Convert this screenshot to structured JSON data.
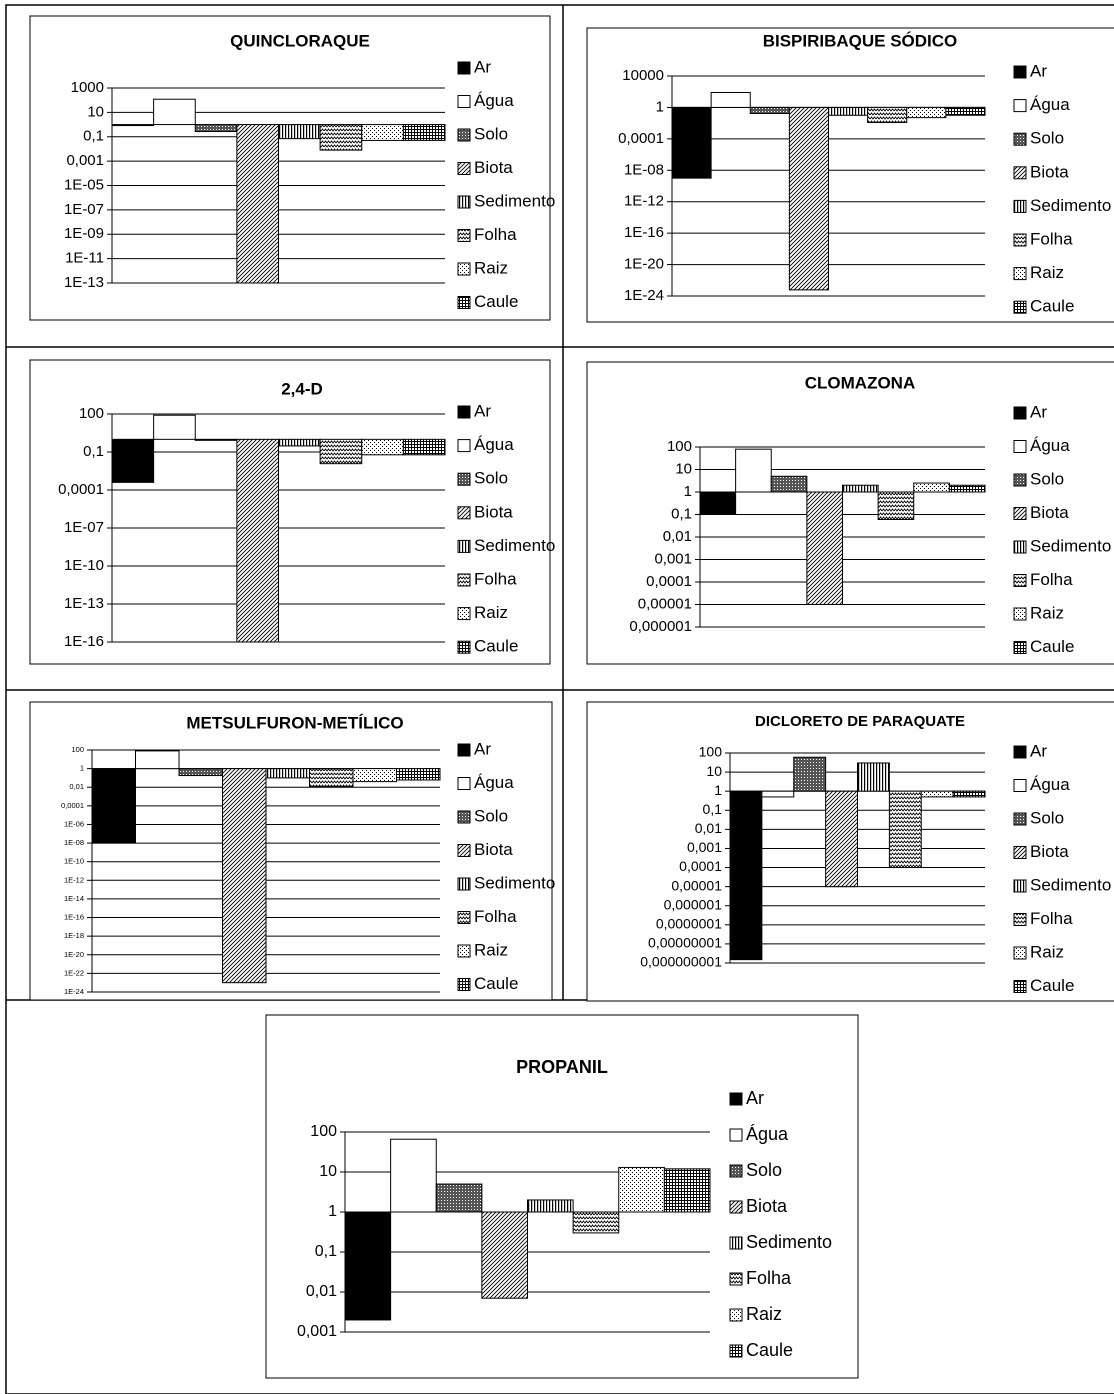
{
  "chart_data": [
    {
      "type": "bar",
      "title": "QUINCLORAQUE",
      "yscale": "log",
      "grid": true,
      "legend": "right",
      "ylim": [
        1e-13,
        1000
      ],
      "yticks": [
        1000,
        10,
        {
          "value": 0.1,
          "label": "0,1"
        },
        {
          "value": 0.001,
          "label": "0,001"
        },
        {
          "value": 1e-05,
          "label": "1E-05"
        },
        {
          "value": 1e-07,
          "label": "1E-07"
        },
        {
          "value": 1e-09,
          "label": "1E-09"
        },
        {
          "value": 1e-11,
          "label": "1E-11"
        },
        {
          "value": 1e-13,
          "label": "1E-13"
        }
      ],
      "series": [
        {
          "name": "Ar",
          "pattern": "solid",
          "values": [
            0.9
          ]
        },
        {
          "name": "Água",
          "pattern": "none",
          "values": [
            120
          ]
        },
        {
          "name": "Solo",
          "pattern": "dense",
          "values": [
            0.27
          ]
        },
        {
          "name": "Biota",
          "pattern": "diagonal",
          "values": [
            1e-13
          ]
        },
        {
          "name": "Sedimento",
          "pattern": "vertical",
          "values": [
            0.07
          ]
        },
        {
          "name": "Folha",
          "pattern": "zigzag",
          "values": [
            0.008
          ]
        },
        {
          "name": "Raiz",
          "pattern": "dots",
          "values": [
            0.05
          ]
        },
        {
          "name": "Caule",
          "pattern": "grid",
          "values": [
            0.05
          ]
        }
      ]
    },
    {
      "type": "bar",
      "title": "BISPIRIBAQUE SÓDICO",
      "yscale": "log",
      "grid": true,
      "legend": "right",
      "ylim": [
        1e-24,
        10000
      ],
      "yticks": [
        10000,
        1,
        {
          "value": 0.0001,
          "label": "0,0001"
        },
        {
          "value": 1e-08,
          "label": "1E-08"
        },
        {
          "value": 1e-12,
          "label": "1E-12"
        },
        {
          "value": 1e-16,
          "label": "1E-16"
        },
        {
          "value": 1e-20,
          "label": "1E-20"
        },
        {
          "value": 1e-24,
          "label": "1E-24"
        }
      ],
      "series": [
        {
          "name": "Ar",
          "pattern": "solid",
          "values": [
            1e-09
          ]
        },
        {
          "name": "Água",
          "pattern": "none",
          "values": [
            80
          ]
        },
        {
          "name": "Solo",
          "pattern": "dense",
          "values": [
            0.17
          ]
        },
        {
          "name": "Biota",
          "pattern": "diagonal",
          "values": [
            6e-24
          ]
        },
        {
          "name": "Sedimento",
          "pattern": "vertical",
          "values": [
            0.1
          ]
        },
        {
          "name": "Folha",
          "pattern": "zigzag",
          "values": [
            0.012
          ]
        },
        {
          "name": "Raiz",
          "pattern": "dots",
          "values": [
            0.05
          ]
        },
        {
          "name": "Caule",
          "pattern": "grid",
          "values": [
            0.1
          ]
        }
      ]
    },
    {
      "type": "bar",
      "title": "2,4-D",
      "yscale": "log",
      "grid": true,
      "legend": "right",
      "ylim": [
        1e-16,
        100
      ],
      "yticks": [
        100,
        {
          "value": 0.1,
          "label": "0,1"
        },
        {
          "value": 0.0001,
          "label": "0,0001"
        },
        {
          "value": 1e-07,
          "label": "1E-07"
        },
        {
          "value": 1e-10,
          "label": "1E-10"
        },
        {
          "value": 1e-13,
          "label": "1E-13"
        },
        {
          "value": 1e-16,
          "label": "1E-16"
        }
      ],
      "series": [
        {
          "name": "Ar",
          "pattern": "solid",
          "values": [
            0.0004
          ]
        },
        {
          "name": "Água",
          "pattern": "none",
          "values": [
            80
          ]
        },
        {
          "name": "Solo",
          "pattern": "dense",
          "values": [
            0.9
          ]
        },
        {
          "name": "Biota",
          "pattern": "diagonal",
          "values": [
            1e-16
          ]
        },
        {
          "name": "Sedimento",
          "pattern": "vertical",
          "values": [
            0.3
          ]
        },
        {
          "name": "Folha",
          "pattern": "zigzag",
          "values": [
            0.012
          ]
        },
        {
          "name": "Raiz",
          "pattern": "dots",
          "values": [
            0.06
          ]
        },
        {
          "name": "Caule",
          "pattern": "grid",
          "values": [
            0.06
          ]
        }
      ]
    },
    {
      "type": "bar",
      "title": "CLOMAZONA",
      "yscale": "log",
      "grid": true,
      "legend": "right",
      "ylim": [
        1e-06,
        100
      ],
      "yticks": [
        100,
        10,
        1,
        {
          "value": 0.1,
          "label": "0,1"
        },
        {
          "value": 0.01,
          "label": "0,01"
        },
        {
          "value": 0.001,
          "label": "0,001"
        },
        {
          "value": 0.0001,
          "label": "0,0001"
        },
        {
          "value": 1e-05,
          "label": "0,00001"
        },
        {
          "value": 1e-06,
          "label": "0,000001"
        }
      ],
      "series": [
        {
          "name": "Ar",
          "pattern": "solid",
          "values": [
            0.1
          ]
        },
        {
          "name": "Água",
          "pattern": "none",
          "values": [
            80
          ]
        },
        {
          "name": "Solo",
          "pattern": "dense",
          "values": [
            5
          ]
        },
        {
          "name": "Biota",
          "pattern": "diagonal",
          "values": [
            1e-05
          ]
        },
        {
          "name": "Sedimento",
          "pattern": "vertical",
          "values": [
            2
          ]
        },
        {
          "name": "Folha",
          "pattern": "zigzag",
          "values": [
            0.06
          ]
        },
        {
          "name": "Raiz",
          "pattern": "dots",
          "values": [
            2.5
          ]
        },
        {
          "name": "Caule",
          "pattern": "grid",
          "values": [
            2
          ]
        }
      ]
    },
    {
      "type": "bar",
      "title": "METSULFURON-METÍLICO",
      "yscale": "log",
      "grid": true,
      "legend": "right",
      "ylim": [
        1e-24,
        100
      ],
      "yticks": [
        100,
        1,
        {
          "value": 0.01,
          "label": "0,01"
        },
        {
          "value": 0.0001,
          "label": "0,0001"
        },
        {
          "value": 1e-06,
          "label": "1E-06"
        },
        {
          "value": 1e-08,
          "label": "1E-08"
        },
        {
          "value": 1e-10,
          "label": "1E-10"
        },
        {
          "value": 1e-12,
          "label": "1E-12"
        },
        {
          "value": 1e-14,
          "label": "1E-14"
        },
        {
          "value": 1e-16,
          "label": "1E-16"
        },
        {
          "value": 1e-18,
          "label": "1E-18"
        },
        {
          "value": 1e-20,
          "label": "1E-20"
        },
        {
          "value": 1e-22,
          "label": "1E-22"
        },
        {
          "value": 1e-24,
          "label": "1E-24"
        }
      ],
      "series": [
        {
          "name": "Ar",
          "pattern": "solid",
          "values": [
            1e-08
          ]
        },
        {
          "name": "Água",
          "pattern": "none",
          "values": [
            80
          ]
        },
        {
          "name": "Solo",
          "pattern": "dense",
          "values": [
            0.18
          ]
        },
        {
          "name": "Biota",
          "pattern": "diagonal",
          "values": [
            1e-23
          ]
        },
        {
          "name": "Sedimento",
          "pattern": "vertical",
          "values": [
            0.1
          ]
        },
        {
          "name": "Folha",
          "pattern": "zigzag",
          "values": [
            0.012
          ]
        },
        {
          "name": "Raiz",
          "pattern": "dots",
          "values": [
            0.04
          ]
        },
        {
          "name": "Caule",
          "pattern": "grid",
          "values": [
            0.06
          ]
        }
      ]
    },
    {
      "type": "bar",
      "title": "DICLORETO DE PARAQUATE",
      "yscale": "log",
      "grid": true,
      "legend": "right",
      "ylim": [
        1e-09,
        100
      ],
      "yticks": [
        100,
        10,
        1,
        {
          "value": 0.1,
          "label": "0,1"
        },
        {
          "value": 0.01,
          "label": "0,01"
        },
        {
          "value": 0.001,
          "label": "0,001"
        },
        {
          "value": 0.0001,
          "label": "0,0001"
        },
        {
          "value": 1e-05,
          "label": "0,00001"
        },
        {
          "value": 1e-06,
          "label": "0,000001"
        },
        {
          "value": 1e-07,
          "label": "0,0000001"
        },
        {
          "value": 1e-08,
          "label": "0,00000001"
        },
        {
          "value": 1e-09,
          "label": "0,000000001"
        }
      ],
      "series": [
        {
          "name": "Ar",
          "pattern": "solid",
          "values": [
            1.5e-09
          ]
        },
        {
          "name": "Água",
          "pattern": "none",
          "values": [
            0.5
          ]
        },
        {
          "name": "Solo",
          "pattern": "dense",
          "values": [
            60
          ]
        },
        {
          "name": "Biota",
          "pattern": "diagonal",
          "values": [
            1e-05
          ]
        },
        {
          "name": "Sedimento",
          "pattern": "vertical",
          "values": [
            30
          ]
        },
        {
          "name": "Folha",
          "pattern": "zigzag",
          "values": [
            0.0001
          ]
        },
        {
          "name": "Raiz",
          "pattern": "dots",
          "values": [
            0.5
          ]
        },
        {
          "name": "Caule",
          "pattern": "grid",
          "values": [
            0.5
          ]
        }
      ]
    },
    {
      "type": "bar",
      "title": "PROPANIL",
      "yscale": "log",
      "grid": true,
      "legend": "right",
      "ylim": [
        0.001,
        100
      ],
      "yticks": [
        100,
        10,
        1,
        {
          "value": 0.1,
          "label": "0,1"
        },
        {
          "value": 0.01,
          "label": "0,01"
        },
        {
          "value": 0.001,
          "label": "0,001"
        }
      ],
      "series": [
        {
          "name": "Ar",
          "pattern": "solid",
          "values": [
            0.002
          ]
        },
        {
          "name": "Água",
          "pattern": "none",
          "values": [
            66
          ]
        },
        {
          "name": "Solo",
          "pattern": "dense",
          "values": [
            5
          ]
        },
        {
          "name": "Biota",
          "pattern": "diagonal",
          "values": [
            0.007
          ]
        },
        {
          "name": "Sedimento",
          "pattern": "vertical",
          "values": [
            2
          ]
        },
        {
          "name": "Folha",
          "pattern": "zigzag",
          "values": [
            0.3
          ]
        },
        {
          "name": "Raiz",
          "pattern": "dots",
          "values": [
            13
          ]
        },
        {
          "name": "Caule",
          "pattern": "grid",
          "values": [
            12
          ]
        }
      ]
    }
  ]
}
